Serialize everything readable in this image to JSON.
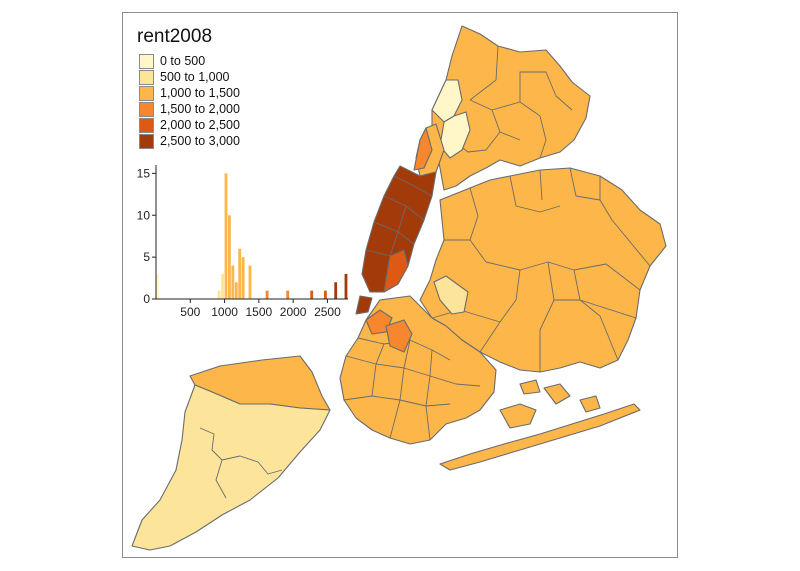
{
  "legend": {
    "title": "rent2008",
    "items": [
      {
        "label": "0 to 500",
        "color": "#fff7c8"
      },
      {
        "label": "500 to 1,000",
        "color": "#fde49b"
      },
      {
        "label": "1,000 to 1,500",
        "color": "#fdb64a"
      },
      {
        "label": "1,500 to 2,000",
        "color": "#f7872e"
      },
      {
        "label": "2,000 to 2,500",
        "color": "#de5a14"
      },
      {
        "label": "2,500 to 3,000",
        "color": "#a33a09"
      }
    ]
  },
  "chart_data": {
    "type": "bar",
    "title": "",
    "xlabel": "",
    "ylabel": "",
    "x_ticks": [
      "500",
      "1000",
      "1500",
      "2000",
      "2500"
    ],
    "x_tick_values": [
      500,
      1000,
      1500,
      2000,
      2500
    ],
    "y_ticks": [
      "0",
      "5",
      "10",
      "15"
    ],
    "y_tick_values": [
      0,
      5,
      10,
      15
    ],
    "xlim": [
      0,
      2800
    ],
    "ylim": [
      0,
      16
    ],
    "bin_width": 50,
    "bins": [
      {
        "x0": 0,
        "count": 3
      },
      {
        "x0": 900,
        "count": 1
      },
      {
        "x0": 950,
        "count": 3
      },
      {
        "x0": 1000,
        "count": 15
      },
      {
        "x0": 1050,
        "count": 10
      },
      {
        "x0": 1100,
        "count": 4
      },
      {
        "x0": 1150,
        "count": 2
      },
      {
        "x0": 1200,
        "count": 6
      },
      {
        "x0": 1250,
        "count": 5
      },
      {
        "x0": 1350,
        "count": 4
      },
      {
        "x0": 1600,
        "count": 1
      },
      {
        "x0": 1900,
        "count": 1
      },
      {
        "x0": 2250,
        "count": 1
      },
      {
        "x0": 2450,
        "count": 1
      },
      {
        "x0": 2600,
        "count": 2
      },
      {
        "x0": 2750,
        "count": 3
      }
    ]
  }
}
